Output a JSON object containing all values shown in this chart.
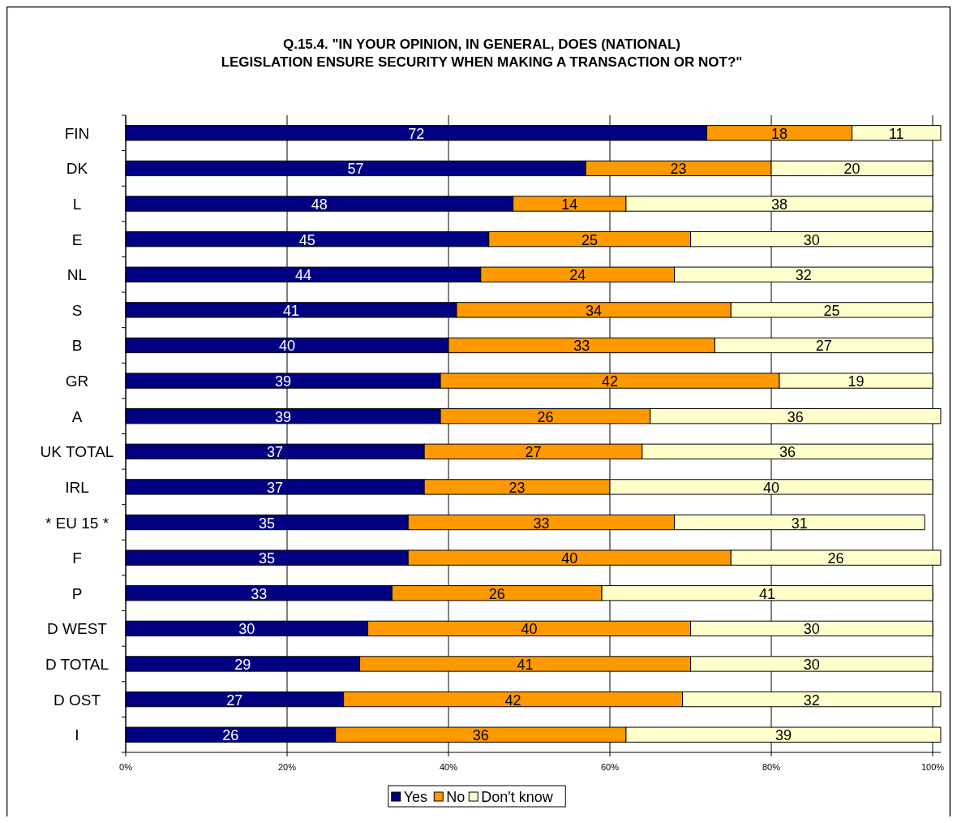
{
  "chart_data": {
    "type": "bar",
    "orientation": "horizontal",
    "stacked": true,
    "title": "Q.15.4. \"IN YOUR OPINION, IN GENERAL, DOES (NATIONAL) LEGISLATION ENSURE SECURITY WHEN MAKING A TRANSACTION OR NOT?\"",
    "categories": [
      "FIN",
      "DK",
      "L",
      "E",
      "NL",
      "S",
      "B",
      "GR",
      "A",
      "UK TOTAL",
      "IRL",
      "* EU 15 *",
      "F",
      "P",
      "D WEST",
      "D TOTAL",
      "D OST",
      "I"
    ],
    "series": [
      {
        "name": "Yes",
        "color": "#000080",
        "values": [
          72,
          57,
          48,
          45,
          44,
          41,
          40,
          39,
          39,
          37,
          37,
          35,
          35,
          33,
          30,
          29,
          27,
          26
        ]
      },
      {
        "name": "No",
        "color": "#ff9900",
        "values": [
          18,
          23,
          14,
          25,
          24,
          34,
          33,
          42,
          26,
          27,
          23,
          33,
          40,
          26,
          40,
          41,
          42,
          36
        ]
      },
      {
        "name": "Don't know",
        "color": "#ffffcc",
        "values": [
          11,
          20,
          38,
          30,
          32,
          25,
          27,
          19,
          36,
          36,
          40,
          31,
          26,
          41,
          30,
          30,
          32,
          39
        ]
      }
    ],
    "xlim": [
      0,
      101
    ],
    "xticks": [
      {
        "value": 0,
        "label": "0%"
      },
      {
        "value": 20,
        "label": "20%"
      },
      {
        "value": 40,
        "label": "40%"
      },
      {
        "value": 60,
        "label": "60%"
      },
      {
        "value": 80,
        "label": "80%"
      },
      {
        "value": 100,
        "label": "100%"
      }
    ],
    "grid": "x",
    "legend": "bottom",
    "data_labels": true
  }
}
